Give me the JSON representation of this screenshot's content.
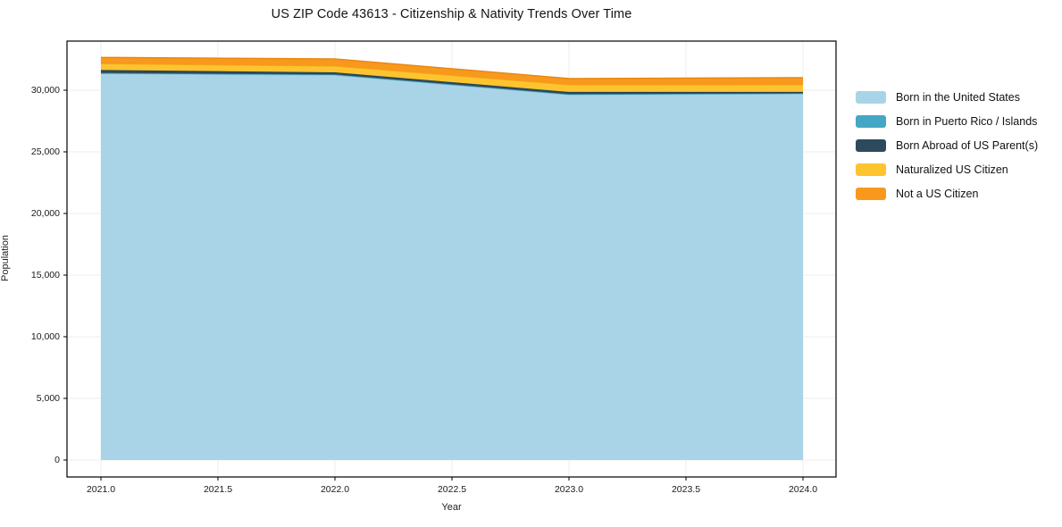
{
  "title": "US ZIP Code 43613 - Citizenship & Nativity Trends Over Time",
  "chart_data": {
    "type": "area",
    "stacked": true,
    "title": "US ZIP Code 43613 - Citizenship & Nativity Trends Over Time",
    "xlabel": "Year",
    "ylabel": "Population",
    "x": [
      2021,
      2022,
      2023,
      2024
    ],
    "xlim": [
      2020.855,
      2024.145
    ],
    "ylim": [
      -1400,
      34000
    ],
    "grid": true,
    "legend_position": "right-outside",
    "x_ticks": [
      2021.0,
      2021.5,
      2022.0,
      2022.5,
      2023.0,
      2023.5,
      2024.0
    ],
    "x_tick_labels": [
      "2021.0",
      "2021.5",
      "2022.0",
      "2022.5",
      "2023.0",
      "2023.5",
      "2024.0"
    ],
    "y_ticks": [
      0,
      5000,
      10000,
      15000,
      20000,
      25000,
      30000
    ],
    "y_tick_labels": [
      "0",
      "5,000",
      "10,000",
      "15,000",
      "20,000",
      "25,000",
      "30,000"
    ],
    "series": [
      {
        "name": "Born in the United States",
        "color": "#a9d4e7",
        "edge": "#8cc3da",
        "values": [
          31350,
          31230,
          29640,
          29710
        ]
      },
      {
        "name": "Born in Puerto Rico / Islands",
        "color": "#45a7c4",
        "edge": "#3b93ad",
        "values": [
          50,
          50,
          40,
          40
        ]
      },
      {
        "name": "Born Abroad of US Parent(s)",
        "color": "#2c4a5c",
        "edge": "#243e4e",
        "values": [
          240,
          170,
          180,
          110
        ]
      },
      {
        "name": "Naturalized US Citizen",
        "color": "#fdc430",
        "edge": "#edb216",
        "values": [
          510,
          510,
          580,
          580
        ]
      },
      {
        "name": "Not a US Citizen",
        "color": "#f8981d",
        "edge": "#e8860e",
        "values": [
          510,
          580,
          510,
          580
        ]
      }
    ]
  }
}
